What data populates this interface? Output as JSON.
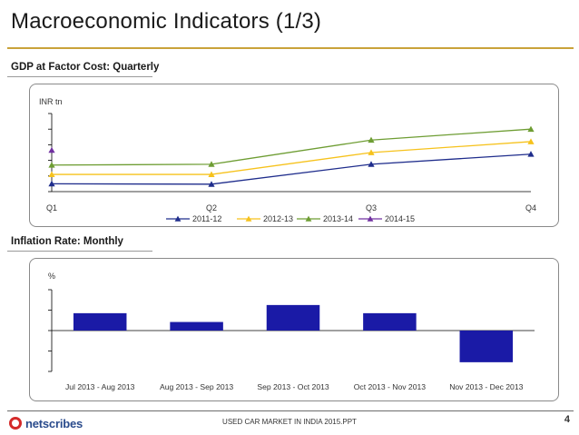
{
  "page": {
    "title": "Macroeconomic Indicators (1/3)",
    "footer": "USED CAR MARKET IN INDIA 2015.PPT",
    "page_number": "4",
    "logo_text": "netscribes"
  },
  "sections": {
    "gdp_label": "GDP at Factor Cost: Quarterly",
    "inflation_label": "Inflation Rate: Monthly"
  },
  "chart_data": [
    {
      "type": "line",
      "title": "GDP at Factor Cost: Quarterly",
      "ylabel": "INR tn",
      "xlabel": "",
      "categories": [
        "Q1",
        "Q2",
        "Q3",
        "Q4"
      ],
      "ylim": [
        0,
        10
      ],
      "series": [
        {
          "name": "2011-12",
          "color": "#1f2d8c",
          "values": [
            1.0,
            0.95,
            3.5,
            4.8
          ]
        },
        {
          "name": "2012-13",
          "color": "#f6c21c",
          "values": [
            2.2,
            2.2,
            5.0,
            6.4
          ]
        },
        {
          "name": "2013-14",
          "color": "#6e9d33",
          "values": [
            3.4,
            3.5,
            6.6,
            8.0
          ]
        },
        {
          "name": "2014-15",
          "color": "#7030a0",
          "values": [
            5.3,
            null,
            null,
            null
          ]
        }
      ],
      "legend": "bottom"
    },
    {
      "type": "bar",
      "title": "Inflation Rate: Monthly",
      "ylabel": "%",
      "xlabel": "",
      "categories": [
        "Jul 2013 - Aug 2013",
        "Aug 2013 - Sep 2013",
        "Sep 2013 - Oct 2013",
        "Oct 2013 - Nov 2013",
        "Nov 2013 -  Dec 2013"
      ],
      "values": [
        0.85,
        0.42,
        1.25,
        0.85,
        -1.55
      ],
      "color": "#1a1aa6",
      "ylim": [
        -2,
        2
      ]
    }
  ]
}
